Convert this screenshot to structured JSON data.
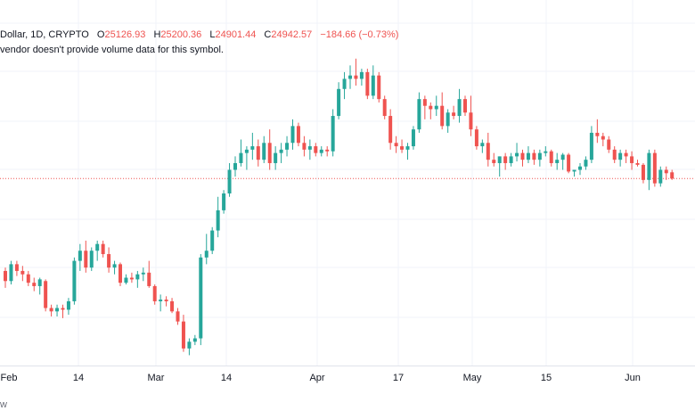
{
  "legend": {
    "symbol": "Dollar, 1D, CRYPTO",
    "o_label": "O",
    "o_value": "25126.93",
    "h_label": "H",
    "h_value": "25200.36",
    "l_label": "L",
    "l_value": "24901.44",
    "c_label": "C",
    "c_value": "24942.57",
    "change": "−184.66 (−0.73%)"
  },
  "note": "vendor doesn't provide volume data for this symbol.",
  "footer": "w",
  "colors": {
    "up": "#26a69a",
    "down": "#ef5350",
    "grid": "#f0f3fa",
    "price_line": "#ef5350"
  },
  "chart_data": {
    "type": "candlestick",
    "interval": "1D",
    "x_ticks": [
      "Feb",
      "14",
      "Mar",
      "14",
      "Apr",
      "17",
      "May",
      "15",
      "Jun"
    ],
    "last_price": 24942.57,
    "candles": [
      [
        0,
        22200,
        22300,
        21700,
        21900
      ],
      [
        1,
        21900,
        22500,
        21800,
        22400
      ],
      [
        2,
        22400,
        22500,
        22050,
        22200
      ],
      [
        3,
        22200,
        22350,
        21900,
        22100
      ],
      [
        4,
        22100,
        22200,
        21750,
        21850
      ],
      [
        5,
        21850,
        22000,
        21600,
        21750
      ],
      [
        6,
        21750,
        22000,
        21500,
        21950
      ],
      [
        7,
        21900,
        21950,
        21000,
        21100
      ],
      [
        8,
        21100,
        21200,
        20850,
        21000
      ],
      [
        9,
        21000,
        21200,
        20850,
        21100
      ],
      [
        10,
        21100,
        21200,
        20800,
        21050
      ],
      [
        11,
        21050,
        21400,
        20900,
        21300
      ],
      [
        12,
        21300,
        22600,
        21200,
        22500
      ],
      [
        13,
        22500,
        23000,
        22200,
        22800
      ],
      [
        14,
        22800,
        23100,
        22150,
        22300
      ],
      [
        15,
        22300,
        22900,
        22200,
        22800
      ],
      [
        16,
        22800,
        23100,
        22500,
        23000
      ],
      [
        17,
        23000,
        23100,
        22600,
        22700
      ],
      [
        18,
        22700,
        22900,
        22150,
        22300
      ],
      [
        19,
        22300,
        22500,
        22100,
        22400
      ],
      [
        20,
        22400,
        22450,
        21750,
        21850
      ],
      [
        21,
        21850,
        22100,
        21800,
        22000
      ],
      [
        22,
        22000,
        22150,
        21850,
        21950
      ],
      [
        23,
        21950,
        22200,
        21700,
        22100
      ],
      [
        24,
        22100,
        22300,
        21900,
        22150
      ],
      [
        25,
        22150,
        22500,
        21700,
        21750
      ],
      [
        26,
        21750,
        21800,
        21200,
        21300
      ],
      [
        27,
        21300,
        21500,
        21000,
        21350
      ],
      [
        28,
        21350,
        21450,
        21150,
        21300
      ],
      [
        29,
        21300,
        21400,
        20950,
        21000
      ],
      [
        30,
        21000,
        21100,
        20600,
        20700
      ],
      [
        31,
        20700,
        20900,
        19800,
        19900
      ],
      [
        32,
        19900,
        20200,
        19700,
        20100
      ],
      [
        33,
        20100,
        20300,
        20000,
        20200
      ],
      [
        34,
        20200,
        22700,
        20000,
        22600
      ],
      [
        35,
        22600,
        23300,
        22400,
        22800
      ],
      [
        36,
        22800,
        23500,
        22700,
        23400
      ],
      [
        37,
        23400,
        24400,
        23200,
        24000
      ],
      [
        38,
        24000,
        24600,
        23900,
        24500
      ],
      [
        39,
        24500,
        25400,
        24400,
        25200
      ],
      [
        40,
        25200,
        25600,
        25000,
        25400
      ],
      [
        41,
        25400,
        26100,
        25300,
        25700
      ],
      [
        42,
        25700,
        25900,
        25200,
        25800
      ],
      [
        43,
        25800,
        26300,
        25500,
        25900
      ],
      [
        44,
        25900,
        26100,
        25300,
        25500
      ],
      [
        45,
        25500,
        26200,
        25400,
        26000
      ],
      [
        46,
        26000,
        26400,
        25200,
        25400
      ],
      [
        47,
        25400,
        25900,
        25200,
        25700
      ],
      [
        48,
        25700,
        26000,
        25400,
        25800
      ],
      [
        49,
        25800,
        26200,
        25600,
        26000
      ],
      [
        50,
        26000,
        26700,
        25800,
        26500
      ],
      [
        51,
        26500,
        26600,
        25900,
        26000
      ],
      [
        52,
        26000,
        26200,
        25600,
        25800
      ],
      [
        53,
        25800,
        26100,
        25500,
        25900
      ],
      [
        54,
        25900,
        26000,
        25600,
        25700
      ],
      [
        55,
        25700,
        25900,
        25600,
        25800
      ],
      [
        56,
        25800,
        25900,
        25600,
        25750
      ],
      [
        57,
        25750,
        27000,
        25600,
        26800
      ],
      [
        58,
        26800,
        27800,
        26700,
        27600
      ],
      [
        59,
        27600,
        28100,
        27300,
        27900
      ],
      [
        60,
        27900,
        28300,
        27600,
        28000
      ],
      [
        61,
        28000,
        28500,
        27700,
        27900
      ],
      [
        62,
        27900,
        28200,
        27700,
        28100
      ],
      [
        63,
        28100,
        28200,
        27300,
        27400
      ],
      [
        64,
        27400,
        28300,
        27300,
        28000
      ],
      [
        65,
        28000,
        28100,
        27200,
        27300
      ],
      [
        66,
        27300,
        27400,
        26700,
        26800
      ],
      [
        67,
        26800,
        27000,
        25800,
        26000
      ],
      [
        68,
        26000,
        26200,
        25700,
        25900
      ],
      [
        69,
        25900,
        26100,
        25700,
        25800
      ],
      [
        70,
        25800,
        26000,
        25500,
        25900
      ],
      [
        71,
        25900,
        26500,
        25800,
        26400
      ],
      [
        72,
        26400,
        27500,
        26300,
        27300
      ],
      [
        73,
        27300,
        27400,
        26700,
        27100
      ],
      [
        74,
        27100,
        27200,
        26700,
        27000
      ],
      [
        75,
        27000,
        27400,
        26800,
        27100
      ],
      [
        76,
        27100,
        27500,
        26400,
        26500
      ],
      [
        77,
        26500,
        27000,
        26300,
        26900
      ],
      [
        78,
        26900,
        27100,
        26700,
        26800
      ],
      [
        79,
        26800,
        27600,
        26600,
        27300
      ],
      [
        80,
        27300,
        27400,
        26800,
        26900
      ],
      [
        81,
        26900,
        27400,
        26200,
        26400
      ],
      [
        82,
        26400,
        26500,
        25800,
        25900
      ],
      [
        83,
        25900,
        26100,
        25700,
        26000
      ],
      [
        84,
        26000,
        26300,
        25300,
        25500
      ],
      [
        85,
        25500,
        25700,
        25300,
        25400
      ],
      [
        86,
        25400,
        25600,
        25000,
        25600
      ],
      [
        87,
        25600,
        25700,
        25200,
        25400
      ],
      [
        88,
        25400,
        25700,
        25300,
        25600
      ],
      [
        89,
        25600,
        26000,
        25450,
        25700
      ],
      [
        90,
        25700,
        25800,
        25300,
        25500
      ],
      [
        91,
        25500,
        25900,
        25400,
        25700
      ],
      [
        92,
        25700,
        25800,
        25350,
        25500
      ],
      [
        93,
        25500,
        25800,
        25300,
        25700
      ],
      [
        94,
        25700,
        25900,
        25600,
        25750
      ],
      [
        95,
        25750,
        25800,
        25300,
        25400
      ],
      [
        96,
        25400,
        25700,
        25200,
        25500
      ],
      [
        97,
        25500,
        25700,
        25200,
        25650
      ],
      [
        98,
        25650,
        25700,
        25100,
        25150
      ],
      [
        99,
        25150,
        25200,
        25000,
        25200
      ],
      [
        100,
        25200,
        25400,
        25050,
        25300
      ],
      [
        101,
        25300,
        25600,
        25200,
        25500
      ],
      [
        102,
        25500,
        26500,
        25400,
        26300
      ],
      [
        103,
        26300,
        26700,
        26000,
        26200
      ],
      [
        104,
        26200,
        26300,
        25900,
        26100
      ],
      [
        105,
        26100,
        26200,
        25700,
        25800
      ],
      [
        106,
        25800,
        25900,
        25400,
        25500
      ],
      [
        107,
        25500,
        25800,
        25300,
        25700
      ],
      [
        108,
        25700,
        25800,
        25400,
        25600
      ],
      [
        109,
        25600,
        25750,
        25200,
        25400
      ],
      [
        110,
        25400,
        25500,
        25300,
        25350
      ],
      [
        111,
        25350,
        25400,
        24800,
        24900
      ],
      [
        112,
        24900,
        25800,
        24600,
        25700
      ],
      [
        113,
        25700,
        25800,
        24700,
        24800
      ],
      [
        114,
        24800,
        25300,
        24700,
        25200
      ],
      [
        115,
        25200,
        25300,
        24900,
        25100
      ],
      [
        116,
        25126.93,
        25200.36,
        24901.44,
        24942.57
      ]
    ]
  }
}
